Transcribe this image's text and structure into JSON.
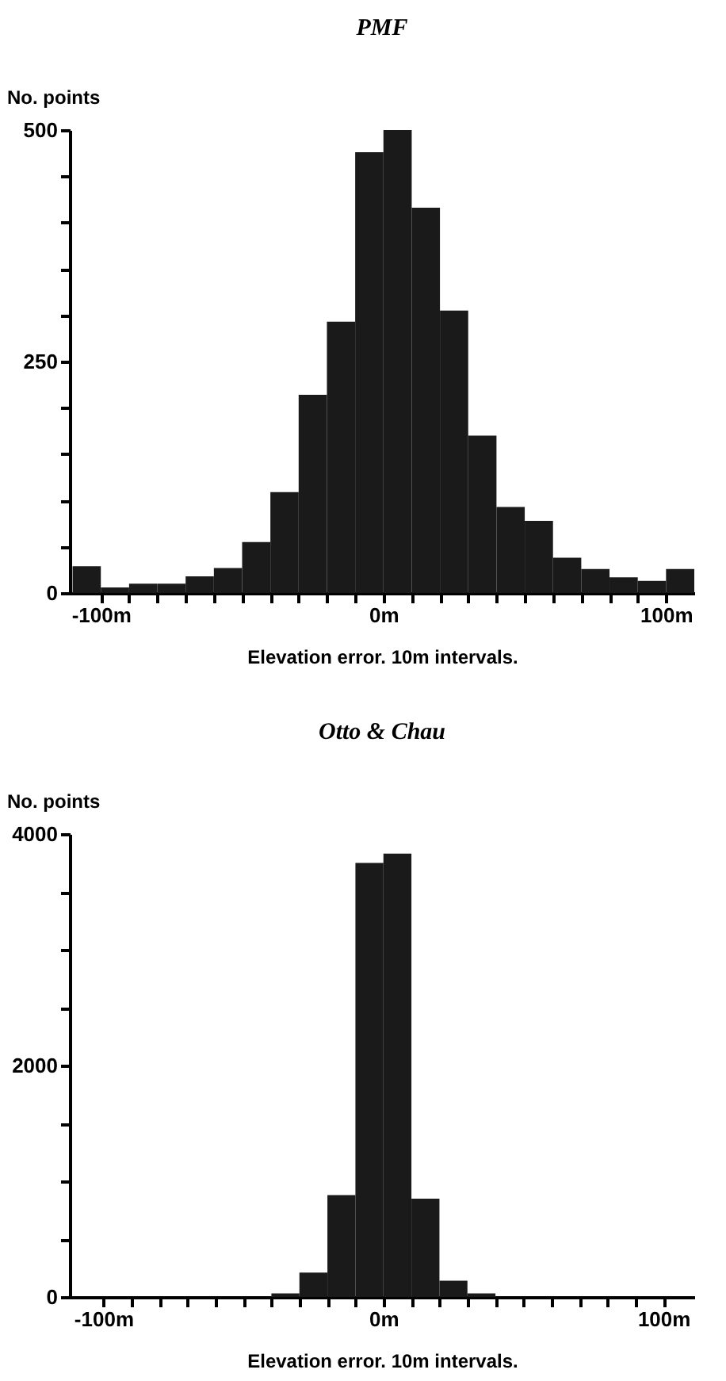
{
  "chart_data": [
    {
      "type": "histogram",
      "title": "PMF",
      "ylabel": "No. points",
      "xlabel": "Elevation error.  10m intervals.",
      "color": "#1a1a1a",
      "bins": [
        -110,
        -100,
        -90,
        -80,
        -70,
        -60,
        -50,
        -40,
        -30,
        -20,
        -10,
        0,
        10,
        20,
        30,
        40,
        50,
        60,
        70,
        80,
        90,
        100,
        110
      ],
      "values": [
        29,
        6,
        10,
        10,
        18,
        27,
        55,
        109,
        214,
        293,
        476,
        500,
        416,
        305,
        170,
        93,
        78,
        38,
        26,
        17,
        13,
        26
      ],
      "xlim": [
        -111,
        110
      ],
      "ylim": [
        0,
        500
      ],
      "xticks": [
        {
          "value": -100,
          "label": "-100m"
        },
        {
          "value": -90,
          "label": null
        },
        {
          "value": -80,
          "label": null
        },
        {
          "value": -70,
          "label": null
        },
        {
          "value": -60,
          "label": null
        },
        {
          "value": -50,
          "label": null
        },
        {
          "value": -40,
          "label": null
        },
        {
          "value": -30,
          "label": null
        },
        {
          "value": -20,
          "label": null
        },
        {
          "value": -10,
          "label": null
        },
        {
          "value": 0,
          "label": "0m"
        },
        {
          "value": 10,
          "label": null
        },
        {
          "value": 20,
          "label": null
        },
        {
          "value": 30,
          "label": null
        },
        {
          "value": 40,
          "label": null
        },
        {
          "value": 50,
          "label": null
        },
        {
          "value": 60,
          "label": null
        },
        {
          "value": 70,
          "label": null
        },
        {
          "value": 80,
          "label": null
        },
        {
          "value": 90,
          "label": null
        },
        {
          "value": 100,
          "label": "100m"
        }
      ],
      "yticks": [
        0,
        {
          "value": 50,
          "label": null
        },
        {
          "value": 100,
          "label": null
        },
        {
          "value": 150,
          "label": null
        },
        {
          "value": 200,
          "label": null
        },
        250,
        {
          "value": 300,
          "label": null
        },
        {
          "value": 350,
          "label": null
        },
        {
          "value": 400,
          "label": null
        },
        {
          "value": 450,
          "label": null
        },
        500
      ]
    },
    {
      "type": "histogram",
      "title": "Otto & Chau",
      "ylabel": "No. points",
      "xlabel": "Elevation error.  10m intervals.",
      "color": "#1a1a1a",
      "bins": [
        -40,
        -30,
        -20,
        -10,
        0,
        10,
        20,
        30,
        40
      ],
      "values": [
        30,
        210,
        880,
        3750,
        3830,
        850,
        140,
        30
      ],
      "xlim": [
        -112,
        111
      ],
      "ylim": [
        0,
        4000
      ],
      "xticks": [
        {
          "value": -100,
          "label": "-100m"
        },
        {
          "value": -90,
          "label": null
        },
        {
          "value": -80,
          "label": null
        },
        {
          "value": -70,
          "label": null
        },
        {
          "value": -60,
          "label": null
        },
        {
          "value": -50,
          "label": null
        },
        {
          "value": -40,
          "label": null
        },
        {
          "value": -30,
          "label": null
        },
        {
          "value": -20,
          "label": null
        },
        {
          "value": -10,
          "label": null
        },
        {
          "value": 0,
          "label": "0m"
        },
        {
          "value": 10,
          "label": null
        },
        {
          "value": 20,
          "label": null
        },
        {
          "value": 30,
          "label": null
        },
        {
          "value": 40,
          "label": null
        },
        {
          "value": 50,
          "label": null
        },
        {
          "value": 60,
          "label": null
        },
        {
          "value": 70,
          "label": null
        },
        {
          "value": 80,
          "label": null
        },
        {
          "value": 90,
          "label": null
        },
        {
          "value": 100,
          "label": "100m"
        }
      ],
      "yticks": [
        0,
        {
          "value": 500,
          "label": null
        },
        {
          "value": 1000,
          "label": null
        },
        {
          "value": 1500,
          "label": null
        },
        2000,
        {
          "value": 2500,
          "label": null
        },
        {
          "value": 3000,
          "label": null
        },
        {
          "value": 3500,
          "label": null
        },
        4000
      ]
    }
  ]
}
